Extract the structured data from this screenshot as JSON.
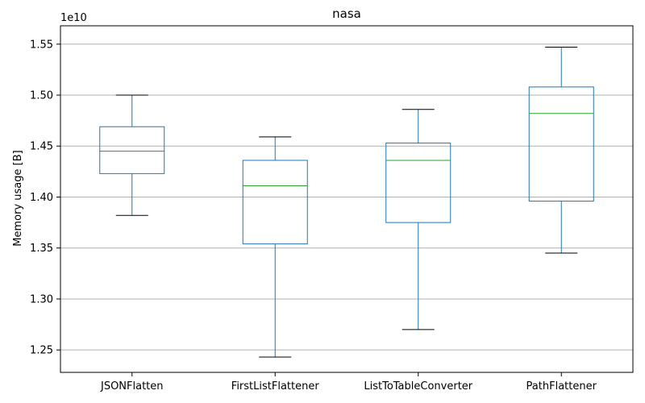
{
  "chart_data": {
    "type": "box",
    "title": "nasa",
    "xlabel": "",
    "ylabel": "Memory usage [B]",
    "y_offset_label": "1e10",
    "y_scale_multiplier": 10000000000,
    "ylim": [
      1.228,
      1.568
    ],
    "yticks": [
      1.25,
      1.3,
      1.35,
      1.4,
      1.45,
      1.5,
      1.55
    ],
    "ytick_labels": [
      "1.25",
      "1.30",
      "1.35",
      "1.40",
      "1.45",
      "1.50",
      "1.55"
    ],
    "grid": "horizontal",
    "categories": [
      "JSONFlatten",
      "FirstListFlattener",
      "ListToTableConverter",
      "PathFlattener"
    ],
    "boxes": [
      {
        "label": "JSONFlatten",
        "whisker_low": 1.382,
        "q1": 1.423,
        "median": 1.445,
        "q3": 1.469,
        "whisker_high": 1.5
      },
      {
        "label": "FirstListFlattener",
        "whisker_low": 1.243,
        "q1": 1.354,
        "median": 1.411,
        "q3": 1.436,
        "whisker_high": 1.459
      },
      {
        "label": "ListToTableConverter",
        "whisker_low": 1.27,
        "q1": 1.375,
        "median": 1.436,
        "q3": 1.453,
        "whisker_high": 1.486
      },
      {
        "label": "PathFlattener",
        "whisker_low": 1.345,
        "q1": 1.396,
        "median": 1.482,
        "q3": 1.508,
        "whisker_high": 1.547
      }
    ],
    "colors": {
      "box": "#1f77b4",
      "median": "#2ca02c",
      "cap": "#000000",
      "grid": "#b0b0b0",
      "axis": "#000000"
    }
  }
}
